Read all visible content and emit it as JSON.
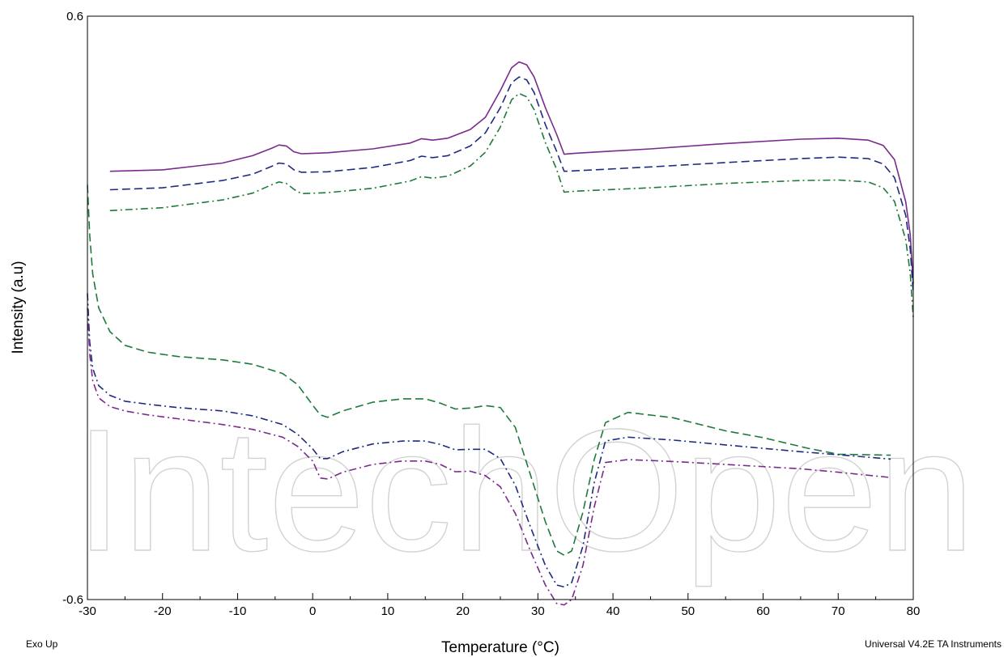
{
  "chart_data": {
    "type": "line",
    "title": "",
    "xlabel": "Temperature (°C)",
    "ylabel": "Intensity (a.u)",
    "xlim": [
      -30,
      80
    ],
    "ylim": [
      -0.6,
      0.6
    ],
    "x_ticks": [
      "-30",
      "-20",
      "-10",
      "0",
      "10",
      "20",
      "30",
      "40",
      "50",
      "60",
      "70",
      "80"
    ],
    "y_ticks": [
      "-0.6",
      "0.6"
    ],
    "grid": false,
    "legend": "none",
    "series": [
      {
        "color": "#7a2a8c",
        "dash": "solid",
        "points": [
          [
            -27,
            0.281
          ],
          [
            -20,
            0.284
          ],
          [
            -12,
            0.298
          ],
          [
            -8,
            0.313
          ],
          [
            -5.5,
            0.328
          ],
          [
            -4.5,
            0.335
          ],
          [
            -3.5,
            0.333
          ],
          [
            -2.5,
            0.321
          ],
          [
            -1.5,
            0.317
          ],
          [
            2,
            0.319
          ],
          [
            8,
            0.327
          ],
          [
            13,
            0.339
          ],
          [
            14.5,
            0.348
          ],
          [
            16,
            0.345
          ],
          [
            18,
            0.349
          ],
          [
            21,
            0.367
          ],
          [
            23,
            0.392
          ],
          [
            25,
            0.447
          ],
          [
            26.5,
            0.494
          ],
          [
            27.5,
            0.506
          ],
          [
            28.5,
            0.5
          ],
          [
            29.5,
            0.475
          ],
          [
            31,
            0.412
          ],
          [
            32.5,
            0.357
          ],
          [
            33.5,
            0.316
          ],
          [
            35,
            0.318
          ],
          [
            45,
            0.327
          ],
          [
            55,
            0.338
          ],
          [
            65,
            0.347
          ],
          [
            70,
            0.349
          ],
          [
            74,
            0.345
          ],
          [
            76,
            0.334
          ],
          [
            77.5,
            0.305
          ],
          [
            79,
            0.218
          ],
          [
            79.6,
            0.15
          ],
          [
            80,
            0.05
          ]
        ]
      },
      {
        "color": "#1f2a80",
        "dash": "10,5",
        "points": [
          [
            -27,
            0.243
          ],
          [
            -20,
            0.247
          ],
          [
            -12,
            0.262
          ],
          [
            -8,
            0.275
          ],
          [
            -5.5,
            0.291
          ],
          [
            -4.5,
            0.298
          ],
          [
            -3.5,
            0.296
          ],
          [
            -2.5,
            0.284
          ],
          [
            -1.5,
            0.279
          ],
          [
            2,
            0.28
          ],
          [
            8,
            0.289
          ],
          [
            13,
            0.303
          ],
          [
            14.5,
            0.312
          ],
          [
            16,
            0.309
          ],
          [
            18,
            0.313
          ],
          [
            21,
            0.333
          ],
          [
            23,
            0.36
          ],
          [
            25,
            0.412
          ],
          [
            26.5,
            0.463
          ],
          [
            27.5,
            0.475
          ],
          [
            28.5,
            0.469
          ],
          [
            29.5,
            0.443
          ],
          [
            31,
            0.377
          ],
          [
            32.5,
            0.322
          ],
          [
            33.5,
            0.281
          ],
          [
            35,
            0.282
          ],
          [
            45,
            0.29
          ],
          [
            55,
            0.299
          ],
          [
            65,
            0.307
          ],
          [
            70,
            0.31
          ],
          [
            74,
            0.307
          ],
          [
            76,
            0.296
          ],
          [
            77.5,
            0.268
          ],
          [
            79,
            0.19
          ],
          [
            79.6,
            0.12
          ],
          [
            80,
            0.03
          ]
        ]
      },
      {
        "color": "#1e7a3c",
        "dash": "9,4,2,4",
        "points": [
          [
            -27,
            0.2
          ],
          [
            -20,
            0.206
          ],
          [
            -12,
            0.222
          ],
          [
            -8,
            0.236
          ],
          [
            -5.5,
            0.253
          ],
          [
            -4.5,
            0.259
          ],
          [
            -3.5,
            0.256
          ],
          [
            -2.5,
            0.244
          ],
          [
            -1.5,
            0.235
          ],
          [
            2,
            0.237
          ],
          [
            8,
            0.246
          ],
          [
            13,
            0.261
          ],
          [
            14.5,
            0.27
          ],
          [
            16,
            0.267
          ],
          [
            18,
            0.271
          ],
          [
            21,
            0.292
          ],
          [
            23,
            0.32
          ],
          [
            25,
            0.372
          ],
          [
            26.5,
            0.428
          ],
          [
            27.5,
            0.441
          ],
          [
            28.5,
            0.434
          ],
          [
            29.5,
            0.408
          ],
          [
            31,
            0.34
          ],
          [
            32.5,
            0.285
          ],
          [
            33.5,
            0.238
          ],
          [
            35,
            0.24
          ],
          [
            45,
            0.247
          ],
          [
            55,
            0.256
          ],
          [
            65,
            0.262
          ],
          [
            70,
            0.263
          ],
          [
            74,
            0.259
          ],
          [
            76,
            0.247
          ],
          [
            77.5,
            0.219
          ],
          [
            79,
            0.14
          ],
          [
            79.6,
            0.07
          ],
          [
            80,
            -0.02
          ]
        ]
      },
      {
        "color": "#1e7a3c",
        "dash": "10,5",
        "points": [
          [
            -30,
            0.253
          ],
          [
            -29.7,
            0.15
          ],
          [
            -29.3,
            0.07
          ],
          [
            -28.5,
            0.0
          ],
          [
            -27,
            -0.049
          ],
          [
            -25,
            -0.077
          ],
          [
            -22,
            -0.091
          ],
          [
            -18,
            -0.1
          ],
          [
            -12,
            -0.107
          ],
          [
            -8,
            -0.116
          ],
          [
            -4,
            -0.135
          ],
          [
            -2,
            -0.158
          ],
          [
            0,
            -0.2
          ],
          [
            1,
            -0.22
          ],
          [
            2,
            -0.225
          ],
          [
            4,
            -0.212
          ],
          [
            8,
            -0.194
          ],
          [
            12,
            -0.187
          ],
          [
            15,
            -0.187
          ],
          [
            17,
            -0.196
          ],
          [
            19,
            -0.208
          ],
          [
            21,
            -0.206
          ],
          [
            23,
            -0.201
          ],
          [
            25,
            -0.205
          ],
          [
            27,
            -0.246
          ],
          [
            29,
            -0.343
          ],
          [
            31,
            -0.44
          ],
          [
            32.5,
            -0.5
          ],
          [
            33.5,
            -0.509
          ],
          [
            34.5,
            -0.5
          ],
          [
            36,
            -0.42
          ],
          [
            37.5,
            -0.312
          ],
          [
            39,
            -0.236
          ],
          [
            42,
            -0.215
          ],
          [
            48,
            -0.226
          ],
          [
            55,
            -0.253
          ],
          [
            60,
            -0.267
          ],
          [
            66,
            -0.289
          ],
          [
            70,
            -0.301
          ],
          [
            77,
            -0.303
          ]
        ]
      },
      {
        "color": "#1f2a80",
        "dash": "9,4,2,4",
        "points": [
          [
            -30,
            0.03
          ],
          [
            -29.7,
            -0.07
          ],
          [
            -29.3,
            -0.124
          ],
          [
            -28.5,
            -0.16
          ],
          [
            -27,
            -0.18
          ],
          [
            -25,
            -0.192
          ],
          [
            -22,
            -0.198
          ],
          [
            -18,
            -0.205
          ],
          [
            -12,
            -0.212
          ],
          [
            -8,
            -0.222
          ],
          [
            -4,
            -0.24
          ],
          [
            -2,
            -0.26
          ],
          [
            0,
            -0.29
          ],
          [
            1,
            -0.31
          ],
          [
            2,
            -0.31
          ],
          [
            4,
            -0.296
          ],
          [
            8,
            -0.28
          ],
          [
            12,
            -0.274
          ],
          [
            15,
            -0.274
          ],
          [
            17,
            -0.281
          ],
          [
            19,
            -0.292
          ],
          [
            21,
            -0.291
          ],
          [
            23,
            -0.291
          ],
          [
            25,
            -0.31
          ],
          [
            27,
            -0.365
          ],
          [
            29,
            -0.45
          ],
          [
            31,
            -0.53
          ],
          [
            32.5,
            -0.57
          ],
          [
            33.5,
            -0.574
          ],
          [
            34.5,
            -0.565
          ],
          [
            36,
            -0.49
          ],
          [
            37.5,
            -0.36
          ],
          [
            39,
            -0.274
          ],
          [
            42,
            -0.266
          ],
          [
            48,
            -0.272
          ],
          [
            55,
            -0.282
          ],
          [
            65,
            -0.296
          ],
          [
            70,
            -0.302
          ],
          [
            77,
            -0.311
          ]
        ]
      },
      {
        "color": "#7a2a8c",
        "dash": "9,4,2,4",
        "points": [
          [
            -30,
            0.0
          ],
          [
            -29.7,
            -0.095
          ],
          [
            -29.3,
            -0.15
          ],
          [
            -28.5,
            -0.185
          ],
          [
            -27,
            -0.203
          ],
          [
            -25,
            -0.212
          ],
          [
            -22,
            -0.22
          ],
          [
            -18,
            -0.228
          ],
          [
            -12,
            -0.24
          ],
          [
            -8,
            -0.25
          ],
          [
            -4,
            -0.266
          ],
          [
            -2,
            -0.285
          ],
          [
            0,
            -0.315
          ],
          [
            1,
            -0.35
          ],
          [
            2,
            -0.352
          ],
          [
            4,
            -0.338
          ],
          [
            8,
            -0.322
          ],
          [
            12,
            -0.315
          ],
          [
            15,
            -0.315
          ],
          [
            17,
            -0.322
          ],
          [
            19,
            -0.337
          ],
          [
            21,
            -0.336
          ],
          [
            23,
            -0.345
          ],
          [
            25,
            -0.368
          ],
          [
            27,
            -0.423
          ],
          [
            29,
            -0.5
          ],
          [
            31,
            -0.57
          ],
          [
            32.5,
            -0.608
          ],
          [
            33.5,
            -0.611
          ],
          [
            34.5,
            -0.6
          ],
          [
            36,
            -0.53
          ],
          [
            37.5,
            -0.41
          ],
          [
            39,
            -0.318
          ],
          [
            42,
            -0.312
          ],
          [
            48,
            -0.316
          ],
          [
            55,
            -0.322
          ],
          [
            65,
            -0.331
          ],
          [
            70,
            -0.338
          ],
          [
            77,
            -0.349
          ]
        ]
      }
    ]
  },
  "footer": {
    "left_note": "Exo Up",
    "right_note": "Universal V4.2E TA Instruments"
  },
  "watermark": "IntechOpen"
}
